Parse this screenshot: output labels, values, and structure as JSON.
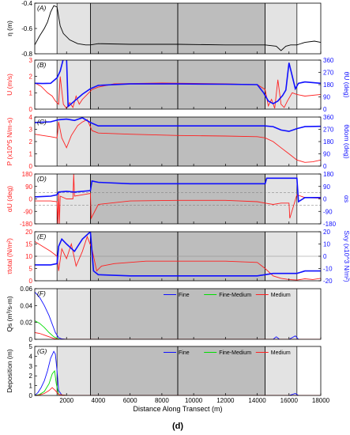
{
  "chart_data": {
    "type": "line",
    "caption": "(d)",
    "xlabel": "Distance Along Transect (m)",
    "xlim": [
      0,
      18000
    ],
    "xticks": [
      2000,
      4000,
      6000,
      8000,
      10000,
      12000,
      14000,
      16000,
      18000
    ],
    "shaded_regions": [
      {
        "from": 1400,
        "to": 3500,
        "shade": "light"
      },
      {
        "from": 3500,
        "to": 9000,
        "shade": "dark"
      },
      {
        "from": 9000,
        "to": 14500,
        "shade": "dark"
      },
      {
        "from": 14500,
        "to": 16500,
        "shade": "light"
      }
    ],
    "colors": {
      "black": "#000000",
      "red": "#ff2020",
      "blue": "#1010ff",
      "green": "#00dd00",
      "light_shade": "#e3e3e3",
      "dark_shade": "#bdbdbd"
    },
    "panels": [
      {
        "label": "(A)",
        "left": {
          "label": "η (m)",
          "lim": [
            -0.8,
            -0.4
          ],
          "ticks": [
            -0.8,
            -0.6,
            -0.4
          ],
          "color": "black"
        },
        "right": null,
        "series": [
          {
            "axis": "left",
            "color": "black",
            "x": [
              0,
              300,
              600,
              800,
              1000,
              1200,
              1400,
              1600,
              1800,
              2200,
              2700,
              3200,
              3500,
              4000,
              6000,
              9000,
              12000,
              14500,
              15200,
              15500,
              15800,
              16100,
              16500,
              17000,
              17600,
              18000
            ],
            "y": [
              -0.73,
              -0.66,
              -0.6,
              -0.55,
              -0.47,
              -0.42,
              -0.43,
              -0.58,
              -0.64,
              -0.69,
              -0.72,
              -0.73,
              -0.73,
              -0.72,
              -0.725,
              -0.725,
              -0.73,
              -0.73,
              -0.74,
              -0.775,
              -0.74,
              -0.73,
              -0.73,
              -0.71,
              -0.7,
              -0.71
            ]
          }
        ]
      },
      {
        "label": "(B)",
        "left": {
          "label": "U (m/s)",
          "lim": [
            0,
            3
          ],
          "ticks": [
            0,
            1,
            2,
            3
          ],
          "color": "red"
        },
        "right": {
          "label": "θU (deg)",
          "lim": [
            0,
            360
          ],
          "ticks": [
            0,
            90,
            180,
            270,
            360
          ],
          "color": "blue"
        },
        "series": [
          {
            "axis": "left",
            "color": "red",
            "x": [
              0,
              400,
              800,
              1100,
              1300,
              1500,
              1600,
              1800,
              2000,
              2200,
              2400,
              2600,
              2800,
              3000,
              3300,
              3600,
              4000,
              5000,
              8000,
              12000,
              14000,
              14500,
              14700,
              14900,
              15100,
              15300,
              15500,
              15700,
              15900,
              16200,
              16500,
              17000,
              18000
            ],
            "y": [
              1.6,
              1.4,
              1.0,
              0.8,
              0.5,
              0.3,
              2.0,
              0.3,
              0.05,
              0.4,
              0.1,
              0.8,
              0.3,
              0.6,
              0.9,
              1.2,
              1.35,
              1.55,
              1.6,
              1.55,
              1.5,
              1.2,
              0.2,
              0.6,
              0.05,
              1.8,
              0.3,
              0.1,
              0.5,
              1.0,
              0.9,
              0.8,
              0.9
            ]
          },
          {
            "axis": "right",
            "color": "blue",
            "x": [
              0,
              500,
              1000,
              1400,
              1600,
              1800,
              2000,
              2100,
              2500,
              3000,
              3500,
              4000,
              6000,
              9000,
              12000,
              14000,
              14400,
              14700,
              15000,
              15300,
              15600,
              15800,
              16000,
              16400,
              16600,
              17000,
              18000
            ],
            "y": [
              190,
              188,
              190,
              230,
              280,
              370,
              380,
              20,
              60,
              110,
              150,
              175,
              185,
              185,
              183,
              180,
              120,
              60,
              40,
              60,
              100,
              140,
              340,
              150,
              190,
              200,
              190
            ]
          }
        ]
      },
      {
        "label": "(C)",
        "left": {
          "label": "P (x10^5 N/m-s)",
          "lim": [
            0,
            4
          ],
          "ticks": [
            0,
            1,
            2,
            3,
            4
          ],
          "color": "red"
        },
        "right": {
          "label": "θdom (deg)",
          "lim": [
            0,
            360
          ],
          "ticks": [
            0,
            90,
            180,
            270,
            360
          ],
          "color": "blue"
        },
        "series": [
          {
            "axis": "left",
            "color": "red",
            "x": [
              0,
              500,
              1000,
              1400,
              1500,
              1700,
              2000,
              2300,
              2700,
              3000,
              3300,
              3600,
              4000,
              6000,
              9000,
              12000,
              14000,
              14500,
              15000,
              15500,
              16000,
              16500,
              17000,
              17500,
              18000
            ],
            "y": [
              2.6,
              2.5,
              2.4,
              2.3,
              3.6,
              2.3,
              1.5,
              2.5,
              3.3,
              3.6,
              3.8,
              2.9,
              2.7,
              2.6,
              2.5,
              2.45,
              2.4,
              2.3,
              2.0,
              1.5,
              1.0,
              0.5,
              0.3,
              0.35,
              0.5
            ]
          },
          {
            "axis": "right",
            "color": "blue",
            "x": [
              0,
              1000,
              1500,
              2000,
              2500,
              3000,
              3500,
              4000,
              6000,
              9000,
              12000,
              14500,
              15000,
              15500,
              16000,
              16500,
              17000,
              18000
            ],
            "y": [
              320,
              325,
              340,
              345,
              335,
              355,
              320,
              295,
              295,
              295,
              295,
              295,
              290,
              265,
              255,
              275,
              290,
              292
            ]
          }
        ]
      },
      {
        "label": "(D)",
        "left": {
          "label": "αU (deg)",
          "lim": [
            -180,
            180
          ],
          "ticks": [
            -180,
            -90,
            0,
            90,
            180
          ],
          "color": "red"
        },
        "right": {
          "label": "αs",
          "lim": [
            -180,
            180
          ],
          "ticks": [
            -180,
            -90,
            0,
            90,
            180
          ],
          "color": "blue"
        },
        "dashed_lines": [
          45,
          -45
        ],
        "series": [
          {
            "axis": "left",
            "color": "red",
            "x": [
              0,
              1000,
              1400,
              1450,
              1500,
              1550,
              1600,
              2000,
              2400,
              2450,
              2500,
              3000,
              3500,
              3550,
              4000,
              6000,
              9000,
              12000,
              14000,
              14500,
              15000,
              15500,
              16000,
              16050,
              16500,
              17000,
              18000
            ],
            "y": [
              -15,
              -15,
              -20,
              -180,
              40,
              -180,
              20,
              0,
              0,
              180,
              20,
              30,
              40,
              -140,
              -40,
              -15,
              -10,
              -10,
              -20,
              -30,
              -40,
              -30,
              -30,
              -140,
              30,
              10,
              5
            ]
          },
          {
            "axis": "right",
            "color": "blue",
            "x": [
              0,
              1000,
              1400,
              1500,
              2000,
              2500,
              3000,
              3500,
              3600,
              4000,
              6000,
              9000,
              12000,
              14500,
              14600,
              15500,
              16000,
              16500,
              16600,
              17000,
              18000
            ],
            "y": [
              15,
              20,
              30,
              50,
              55,
              50,
              55,
              60,
              130,
              120,
              110,
              110,
              110,
              110,
              150,
              150,
              150,
              150,
              -20,
              10,
              10
            ]
          }
        ]
      },
      {
        "label": "(E)",
        "left": {
          "label": "τtotal (N/m²)",
          "lim": [
            0,
            20
          ],
          "ticks": [
            0,
            5,
            10,
            15,
            20
          ],
          "color": "red"
        },
        "right": {
          "label": "Sxy (x10^3 N/m²)",
          "lim": [
            -20,
            20
          ],
          "ticks": [
            -20,
            -10,
            0,
            10,
            20
          ],
          "color": "blue"
        },
        "hline": 10,
        "series": [
          {
            "axis": "left",
            "color": "red",
            "x": [
              0,
              500,
              1000,
              1400,
              1500,
              1700,
              2000,
              2300,
              2600,
              3000,
              3300,
              3600,
              3900,
              4200,
              5000,
              7000,
              9000,
              12000,
              14000,
              14500,
              15000,
              15500,
              16000,
              16500,
              17000,
              17500,
              18000
            ],
            "y": [
              16,
              14,
              12,
              10,
              4,
              13,
              9,
              15,
              6,
              12,
              18,
              13,
              4,
              6,
              7,
              8,
              8,
              8,
              7.5,
              5,
              2,
              1,
              0.5,
              0.3,
              0.8,
              0.5,
              1
            ]
          },
          {
            "axis": "right",
            "color": "blue",
            "x": [
              0,
              1000,
              1400,
              1500,
              1700,
              2000,
              2500,
              3000,
              3500,
              3700,
              4000,
              6000,
              9000,
              12000,
              14000,
              14500,
              15000,
              15500,
              16000,
              16500,
              17000,
              18000
            ],
            "y": [
              -7,
              -7,
              -6,
              8,
              14,
              10,
              4,
              14,
              20,
              -12,
              -15,
              -16,
              -16,
              -16,
              -16,
              -15,
              -14,
              -14,
              -14,
              -14,
              -12,
              -12
            ]
          }
        ]
      },
      {
        "label": "(F)",
        "left": {
          "label": "Qs (m³/s-m)",
          "lim": [
            0,
            0.06
          ],
          "ticks": [
            0,
            0.02,
            0.04,
            0.06
          ],
          "color": "black"
        },
        "right": null,
        "legend": {
          "position": "right",
          "entries": [
            "Fine",
            "Fine-Medium",
            "Medium"
          ]
        },
        "series": [
          {
            "axis": "left",
            "name": "Fine",
            "color": "blue",
            "x": [
              0,
              300,
              600,
              900,
              1100,
              1300,
              1500,
              1700,
              2000,
              3000,
              14000,
              15000,
              15200,
              15400,
              16000,
              16400,
              16600,
              18000
            ],
            "y": [
              0.056,
              0.05,
              0.04,
              0.028,
              0.018,
              0.008,
              0.002,
              0.0005,
              0,
              0,
              0,
              0,
              0.003,
              0,
              0,
              0.004,
              0,
              0
            ]
          },
          {
            "axis": "left",
            "name": "Fine-Medium",
            "color": "green",
            "x": [
              0,
              300,
              600,
              900,
              1200,
              1400,
              1600,
              2000,
              18000
            ],
            "y": [
              0.022,
              0.019,
              0.014,
              0.008,
              0.003,
              0.001,
              0,
              0,
              0
            ]
          },
          {
            "axis": "left",
            "name": "Medium",
            "color": "red",
            "x": [
              0,
              300,
              600,
              900,
              1200,
              1500,
              2000,
              18000
            ],
            "y": [
              0.008,
              0.007,
              0.005,
              0.003,
              0.001,
              0,
              0,
              0
            ]
          }
        ]
      },
      {
        "label": "(G)",
        "left": {
          "label": "Deposition (m)",
          "lim": [
            0,
            5
          ],
          "ticks": [
            0,
            1,
            2,
            3,
            4,
            5
          ],
          "color": "black"
        },
        "right": null,
        "legend": {
          "position": "right",
          "entries": [
            "Fine",
            "Fine-Medium",
            "Medium"
          ]
        },
        "series": [
          {
            "axis": "left",
            "name": "Fine",
            "color": "blue",
            "x": [
              0,
              200,
              400,
              600,
              800,
              1000,
              1200,
              1300,
              1400,
              1500,
              1700,
              2000,
              3000,
              16000,
              16400,
              16600,
              18000
            ],
            "y": [
              0,
              0.3,
              0.8,
              1.5,
              2.5,
              3.8,
              4.5,
              4.2,
              2.5,
              0.5,
              0.05,
              0,
              0,
              0,
              0.2,
              0,
              0
            ]
          },
          {
            "axis": "left",
            "name": "Fine-Medium",
            "color": "green",
            "x": [
              0,
              300,
              600,
              900,
              1100,
              1250,
              1350,
              1500,
              2000,
              18000
            ],
            "y": [
              0,
              0.1,
              0.4,
              1.2,
              2.2,
              2.5,
              1.2,
              0.1,
              0,
              0
            ]
          },
          {
            "axis": "left",
            "name": "Medium",
            "color": "red",
            "x": [
              0,
              300,
              600,
              900,
              1100,
              1300,
              1500,
              2000,
              18000
            ],
            "y": [
              0,
              0.05,
              0.2,
              0.5,
              0.8,
              0.5,
              0.1,
              0,
              0
            ]
          }
        ]
      }
    ]
  }
}
